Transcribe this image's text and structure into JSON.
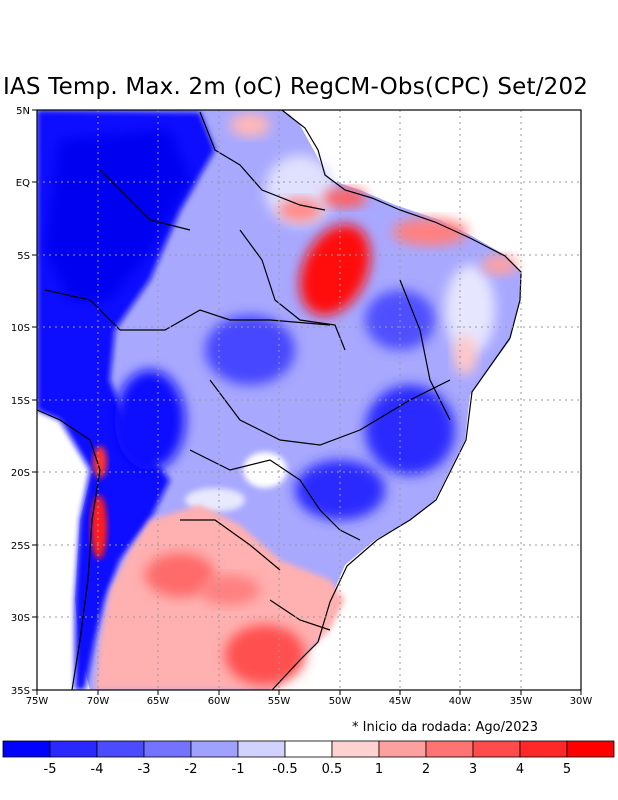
{
  "map": {
    "title": "IAS Temp. Max. 2m (oC) RegCM-Obs(CPC) Set/202",
    "lat_labels": [
      "5N",
      "EQ",
      "5S",
      "10S",
      "15S",
      "20S",
      "25S",
      "30S",
      "35S"
    ],
    "lon_labels": [
      "75W",
      "70W",
      "65W",
      "60W",
      "55W",
      "50W",
      "45W",
      "40W",
      "35W",
      "30W"
    ],
    "footnote": "* Inicio da rodada: Ago/2023",
    "region": "South America / Brazil",
    "lon_range": [
      -75,
      -30
    ],
    "lat_range": [
      -35,
      5
    ],
    "colorbar": {
      "labels": [
        "-5",
        "-4",
        "-3",
        "-2",
        "-1",
        "-0.5",
        "0.5",
        "1",
        "2",
        "3",
        "4",
        "5"
      ],
      "colors": [
        "#0000ff",
        "#2828ff",
        "#4b4bff",
        "#7373ff",
        "#a0a0ff",
        "#d2d2ff",
        "#ffffff",
        "#ffd2d2",
        "#ffa0a0",
        "#ff7373",
        "#ff4b4b",
        "#ff2828",
        "#ff0000"
      ]
    }
  }
}
